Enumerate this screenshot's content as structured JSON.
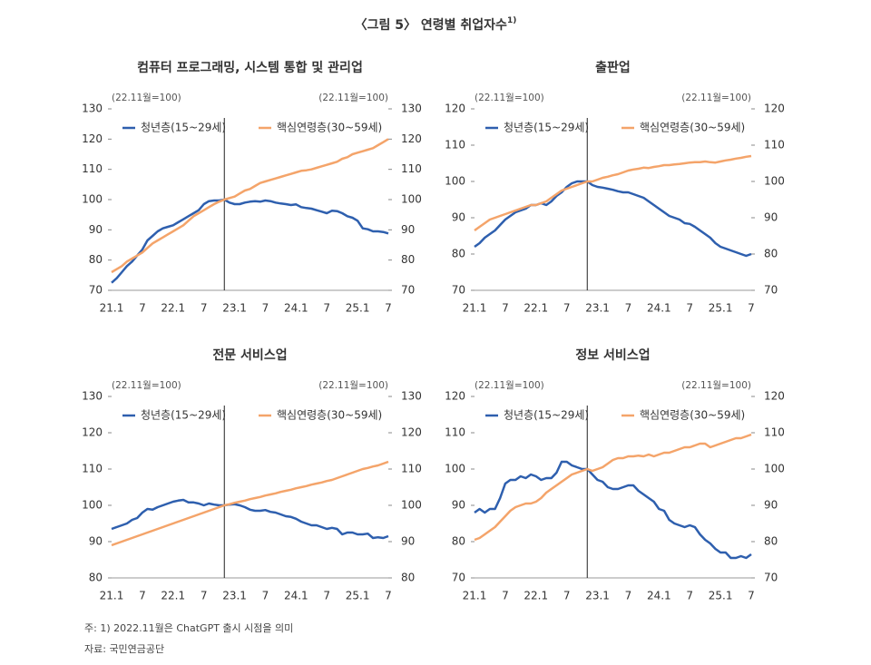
{
  "title": "〈그림 5〉 연령별 취업자수",
  "title_note": "1)",
  "notes": [
    "주: 1) 2022.11월은 ChatGPT 출시 시점을 의미",
    "자료: 국민연금공단"
  ],
  "chart_data": [
    {
      "type": "line",
      "title": "컴퓨터 프로그래밍, 시스템 통합 및 관리업",
      "y_unit_label": "(22.11월=100)",
      "y2_unit_label": "(22.11월=100)",
      "categories": [
        "21.1",
        null,
        null,
        null,
        null,
        null,
        "7",
        null,
        null,
        null,
        null,
        null,
        "22.1",
        null,
        null,
        null,
        null,
        null,
        "7",
        null,
        null,
        null,
        null,
        null,
        "23.1",
        null,
        null,
        null,
        null,
        null,
        "7",
        null,
        null,
        null,
        null,
        null,
        "24.1",
        null,
        null,
        null,
        null,
        null,
        "7",
        null,
        null,
        null,
        null,
        null,
        "25.1",
        null,
        null,
        null,
        null,
        null,
        "7"
      ],
      "vline_at": 22,
      "legend": "top",
      "ylim": [
        70,
        130
      ],
      "yticks": [
        70,
        80,
        90,
        100,
        110,
        120,
        130
      ],
      "y2lim": [
        70,
        130
      ],
      "y2ticks": [
        70,
        80,
        90,
        100,
        110,
        120,
        130
      ],
      "series": [
        {
          "name": "청년층(15~29세)",
          "color": "#2e5fae",
          "values": [
            72.5,
            74,
            76,
            78,
            79.5,
            81.5,
            83.5,
            86.5,
            88,
            89.5,
            90.5,
            91,
            91.5,
            92.5,
            93.5,
            94.5,
            95.5,
            96.5,
            98.5,
            99.5,
            99.7,
            99.7,
            100,
            99,
            98.5,
            98.5,
            99,
            99.3,
            99.5,
            99.3,
            99.7,
            99.5,
            99,
            98.7,
            98.5,
            98.2,
            98.4,
            97.5,
            97.2,
            97,
            96.5,
            96,
            95.5,
            96.3,
            96.2,
            95.5,
            94.5,
            94,
            93,
            90.5,
            90.2,
            89.5,
            89.5,
            89.3,
            88.8
          ]
        },
        {
          "name": "핵심연령층(30~59세)",
          "color": "#f4a46a",
          "values": [
            76,
            77,
            78,
            79.5,
            80.5,
            81.5,
            82.5,
            84,
            85.5,
            86.5,
            87.5,
            88.5,
            89.5,
            90.5,
            91.5,
            93,
            94.5,
            95.5,
            96.5,
            97.5,
            98.5,
            99.3,
            100,
            100.5,
            101,
            102,
            103,
            103.5,
            104.5,
            105.5,
            106,
            106.5,
            107,
            107.5,
            108,
            108.5,
            109,
            109.5,
            109.7,
            110,
            110.5,
            111,
            111.5,
            112,
            112.5,
            113.5,
            114,
            115,
            115.5,
            116,
            116.5,
            117,
            118,
            119,
            120
          ]
        }
      ]
    },
    {
      "type": "line",
      "title": "출판업",
      "y_unit_label": "(22.11월=100)",
      "y2_unit_label": "(22.11월=100)",
      "categories": [
        "21.1",
        null,
        null,
        null,
        null,
        null,
        "7",
        null,
        null,
        null,
        null,
        null,
        "22.1",
        null,
        null,
        null,
        null,
        null,
        "7",
        null,
        null,
        null,
        null,
        null,
        "23.1",
        null,
        null,
        null,
        null,
        null,
        "7",
        null,
        null,
        null,
        null,
        null,
        "24.1",
        null,
        null,
        null,
        null,
        null,
        "7",
        null,
        null,
        null,
        null,
        null,
        "25.1",
        null,
        null,
        null,
        null,
        null,
        "7"
      ],
      "vline_at": 22,
      "legend": "top",
      "ylim": [
        70,
        120
      ],
      "yticks": [
        70,
        80,
        90,
        100,
        110,
        120
      ],
      "y2lim": [
        70,
        120
      ],
      "y2ticks": [
        70,
        80,
        90,
        100,
        110,
        120
      ],
      "series": [
        {
          "name": "청년층(15~29세)",
          "color": "#2e5fae",
          "values": [
            82,
            83,
            84.5,
            85.5,
            86.5,
            88,
            89.5,
            90.5,
            91.5,
            92,
            92.5,
            93.5,
            93.5,
            94,
            93.5,
            94.5,
            96,
            97,
            98.5,
            99.5,
            100,
            100,
            100,
            99,
            98.5,
            98.3,
            98,
            97.7,
            97.3,
            97,
            97,
            96.5,
            96,
            95.5,
            94.5,
            93.5,
            92.5,
            91.5,
            90.5,
            90,
            89.5,
            88.5,
            88.3,
            87.5,
            86.5,
            85.5,
            84.5,
            83,
            82,
            81.5,
            81,
            80.5,
            80,
            79.5,
            80
          ]
        },
        {
          "name": "핵심연령층(30~59세)",
          "color": "#f4a46a",
          "values": [
            86.5,
            87.5,
            88.5,
            89.5,
            90,
            90.5,
            91,
            91.5,
            92,
            92.5,
            93,
            93.5,
            93.5,
            94,
            94.5,
            95.5,
            96.5,
            97.5,
            98,
            98.5,
            99,
            99.5,
            100,
            100,
            100.5,
            101,
            101.3,
            101.7,
            102,
            102.5,
            103,
            103.3,
            103.5,
            103.8,
            103.7,
            104,
            104.2,
            104.5,
            104.5,
            104.7,
            104.8,
            105,
            105.2,
            105.3,
            105.3,
            105.5,
            105.3,
            105.2,
            105.5,
            105.8,
            106,
            106.3,
            106.5,
            106.8,
            107
          ]
        }
      ]
    },
    {
      "type": "line",
      "title": "전문 서비스업",
      "y_unit_label": "(22.11월=100)",
      "y2_unit_label": "(22.11월=100)",
      "categories": [
        "21.1",
        null,
        null,
        null,
        null,
        null,
        "7",
        null,
        null,
        null,
        null,
        null,
        "22.1",
        null,
        null,
        null,
        null,
        null,
        "7",
        null,
        null,
        null,
        null,
        null,
        "23.1",
        null,
        null,
        null,
        null,
        null,
        "7",
        null,
        null,
        null,
        null,
        null,
        "24.1",
        null,
        null,
        null,
        null,
        null,
        "7",
        null,
        null,
        null,
        null,
        null,
        "25.1",
        null,
        null,
        null,
        null,
        null,
        "7"
      ],
      "vline_at": 22,
      "legend": "top",
      "ylim": [
        80,
        130
      ],
      "yticks": [
        80,
        90,
        100,
        110,
        120,
        130
      ],
      "y2lim": [
        80,
        130
      ],
      "y2ticks": [
        80,
        90,
        100,
        110,
        120,
        130
      ],
      "series": [
        {
          "name": "청년층(15~29세)",
          "color": "#2e5fae",
          "values": [
            93.5,
            94,
            94.5,
            95,
            96,
            96.5,
            98,
            99,
            98.8,
            99.5,
            100,
            100.5,
            101,
            101.3,
            101.5,
            100.8,
            100.8,
            100.5,
            100,
            100.5,
            100.2,
            100,
            100,
            100.2,
            100.3,
            100,
            99.5,
            98.8,
            98.5,
            98.5,
            98.7,
            98.2,
            98,
            97.5,
            97,
            96.8,
            96.3,
            95.5,
            95,
            94.5,
            94.5,
            94,
            93.5,
            93.8,
            93.5,
            92,
            92.5,
            92.5,
            92,
            92,
            92.2,
            91,
            91.2,
            91,
            91.5
          ]
        },
        {
          "name": "핵심연령층(30~59세)",
          "color": "#f4a46a",
          "values": [
            89,
            89.5,
            90,
            90.5,
            91,
            91.5,
            92,
            92.5,
            93,
            93.5,
            94,
            94.5,
            95,
            95.5,
            96,
            96.5,
            97,
            97.5,
            98,
            98.5,
            99,
            99.5,
            100,
            100.3,
            100.7,
            101,
            101.3,
            101.7,
            102,
            102.3,
            102.7,
            103,
            103.3,
            103.7,
            104,
            104.3,
            104.7,
            105,
            105.3,
            105.7,
            106,
            106.3,
            106.7,
            107,
            107.5,
            108,
            108.5,
            109,
            109.5,
            110,
            110.3,
            110.7,
            111,
            111.5,
            112
          ]
        }
      ]
    },
    {
      "type": "line",
      "title": "정보 서비스업",
      "y_unit_label": "(22.11월=100)",
      "y2_unit_label": "(22.11월=100)",
      "categories": [
        "21.1",
        null,
        null,
        null,
        null,
        null,
        "7",
        null,
        null,
        null,
        null,
        null,
        "22.1",
        null,
        null,
        null,
        null,
        null,
        "7",
        null,
        null,
        null,
        null,
        null,
        "23.1",
        null,
        null,
        null,
        null,
        null,
        "7",
        null,
        null,
        null,
        null,
        null,
        "24.1",
        null,
        null,
        null,
        null,
        null,
        "7",
        null,
        null,
        null,
        null,
        null,
        "25.1",
        null,
        null,
        null,
        null,
        null,
        "7"
      ],
      "vline_at": 22,
      "legend": "top",
      "ylim": [
        70,
        120
      ],
      "yticks": [
        70,
        80,
        90,
        100,
        110,
        120
      ],
      "y2lim": [
        70,
        120
      ],
      "y2ticks": [
        70,
        80,
        90,
        100,
        110,
        120
      ],
      "series": [
        {
          "name": "청년층(15~29세)",
          "color": "#2e5fae",
          "values": [
            88,
            89,
            88,
            89,
            89,
            92,
            96,
            97,
            97,
            98,
            97.5,
            98.5,
            98,
            97,
            97.5,
            97.5,
            99,
            102,
            102,
            101,
            100.5,
            100,
            100,
            98.5,
            97,
            96.5,
            95,
            94.5,
            94.5,
            95,
            95.5,
            95.5,
            94,
            93,
            92,
            91,
            89,
            88.5,
            86,
            85,
            84.5,
            84,
            84.5,
            84,
            82,
            80.5,
            79.5,
            78,
            77,
            77,
            75.5,
            75.5,
            76,
            75.5,
            76.5
          ]
        },
        {
          "name": "핵심연령층(30~59세)",
          "color": "#f4a46a",
          "values": [
            80.5,
            81,
            82,
            83,
            84,
            85.5,
            87,
            88.5,
            89.5,
            90,
            90.5,
            90.5,
            91,
            92,
            93.5,
            94.5,
            95.5,
            96.5,
            97.5,
            98.5,
            99,
            99.5,
            100,
            99.5,
            100,
            100.5,
            101.5,
            102.5,
            103,
            103,
            103.5,
            103.5,
            103.7,
            103.5,
            104,
            103.5,
            104,
            104.5,
            104.5,
            105,
            105.5,
            106,
            106,
            106.5,
            107,
            107,
            106,
            106.5,
            107,
            107.5,
            108,
            108.5,
            108.5,
            109,
            109.5
          ]
        }
      ]
    }
  ]
}
